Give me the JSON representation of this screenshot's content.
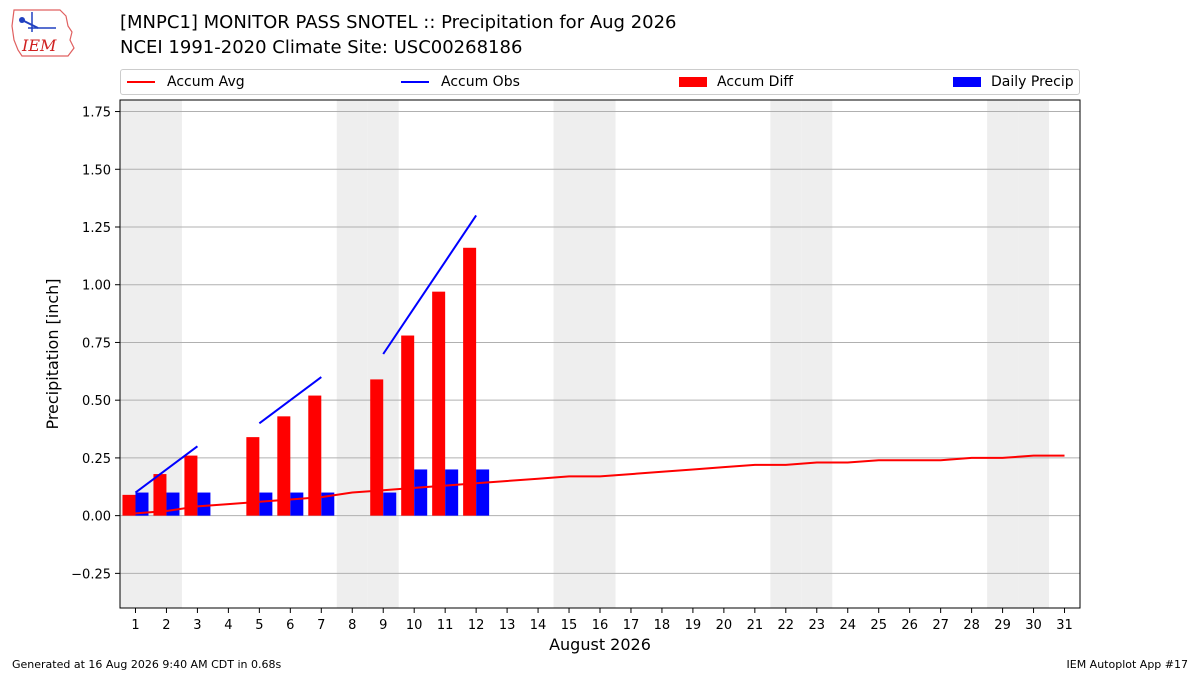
{
  "header": {
    "logo_text": "IEM",
    "title_line1": "[MNPC1] MONITOR PASS SNOTEL :: Precipitation for Aug 2026",
    "title_line2": "NCEI 1991-2020 Climate Site: USC00268186"
  },
  "legend": {
    "items": [
      {
        "label": "Accum Avg",
        "kind": "line",
        "color": "#ff0000"
      },
      {
        "label": "Accum Obs",
        "kind": "line",
        "color": "#0000ff"
      },
      {
        "label": "Accum Diff",
        "kind": "bar",
        "color": "#ff0000"
      },
      {
        "label": "Daily Precip",
        "kind": "bar",
        "color": "#0000ff"
      }
    ]
  },
  "chart_data": {
    "type": "bar",
    "xlabel": "August 2026",
    "ylabel": "Precipitation [inch]",
    "xlim": [
      0.5,
      31.5
    ],
    "ylim": [
      -0.4,
      1.8
    ],
    "yticks": [
      -0.25,
      0.0,
      0.25,
      0.5,
      0.75,
      1.0,
      1.25,
      1.5,
      1.75
    ],
    "ytick_labels": [
      "−0.25",
      "0.00",
      "0.25",
      "0.50",
      "0.75",
      "1.00",
      "1.25",
      "1.50",
      "1.75"
    ],
    "days": [
      1,
      2,
      3,
      4,
      5,
      6,
      7,
      8,
      9,
      10,
      11,
      12,
      13,
      14,
      15,
      16,
      17,
      18,
      19,
      20,
      21,
      22,
      23,
      24,
      25,
      26,
      27,
      28,
      29,
      30,
      31
    ],
    "weekend_days": [
      1,
      2,
      8,
      9,
      15,
      16,
      22,
      23,
      29,
      30
    ],
    "grid": true,
    "series": [
      {
        "name": "Accum Avg",
        "type": "line",
        "color": "#ff0000",
        "x": [
          1,
          2,
          3,
          4,
          5,
          6,
          7,
          8,
          9,
          10,
          11,
          12,
          13,
          14,
          15,
          16,
          17,
          18,
          19,
          20,
          21,
          22,
          23,
          24,
          25,
          26,
          27,
          28,
          29,
          30,
          31
        ],
        "y": [
          0.01,
          0.02,
          0.04,
          0.05,
          0.06,
          0.07,
          0.08,
          0.1,
          0.11,
          0.12,
          0.13,
          0.14,
          0.15,
          0.16,
          0.17,
          0.17,
          0.18,
          0.19,
          0.2,
          0.21,
          0.22,
          0.22,
          0.23,
          0.23,
          0.24,
          0.24,
          0.24,
          0.25,
          0.25,
          0.26,
          0.26
        ]
      },
      {
        "name": "Accum Obs",
        "type": "line",
        "color": "#0000ff",
        "segments": [
          {
            "x": [
              1,
              2,
              3
            ],
            "y": [
              0.1,
              0.2,
              0.3
            ]
          },
          {
            "x": [
              5,
              6,
              7
            ],
            "y": [
              0.4,
              0.5,
              0.6
            ]
          },
          {
            "x": [
              9,
              10,
              11,
              12
            ],
            "y": [
              0.7,
              0.9,
              1.1,
              1.3
            ]
          }
        ]
      },
      {
        "name": "Accum Diff",
        "type": "bar",
        "color": "#ff0000",
        "x": [
          1,
          2,
          3,
          5,
          6,
          7,
          9,
          10,
          11,
          12
        ],
        "y": [
          0.09,
          0.18,
          0.26,
          0.34,
          0.43,
          0.52,
          0.59,
          0.78,
          0.97,
          1.16
        ]
      },
      {
        "name": "Daily Precip",
        "type": "bar",
        "color": "#0000ff",
        "x": [
          1,
          2,
          3,
          5,
          6,
          7,
          9,
          10,
          11,
          12
        ],
        "y": [
          0.1,
          0.1,
          0.1,
          0.1,
          0.1,
          0.1,
          0.1,
          0.2,
          0.2,
          0.2
        ]
      }
    ]
  },
  "footer": {
    "left": "Generated at 16 Aug 2026 9:40 AM CDT in 0.68s",
    "right": "IEM Autoplot App #17"
  }
}
